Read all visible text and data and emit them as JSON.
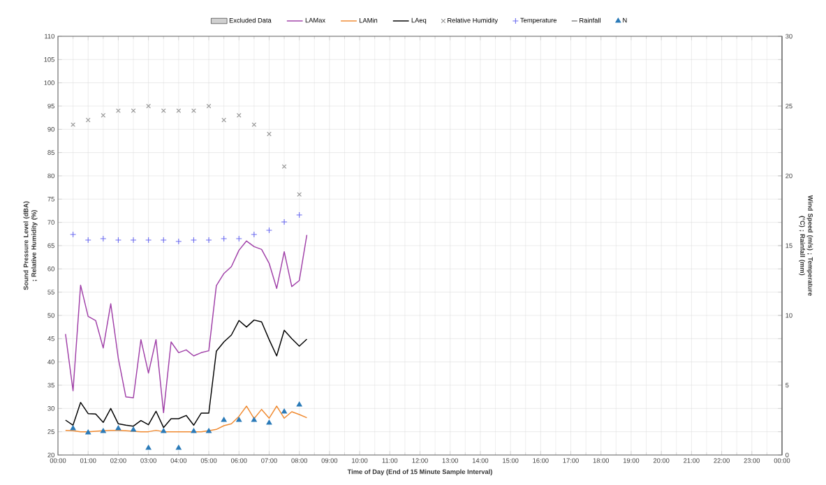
{
  "chart_data": {
    "type": "line",
    "xlabel": "Time of Day (End of 15 Minute Sample Interval)",
    "ylabel": "Sound Pressure Level (dBA) ; Relative Humidity (%)",
    "y2label": "Wind Speed (m/s) ; Temperature (°C) ; Rainfall (mm)",
    "xlim": [
      0,
      24
    ],
    "xticks": [
      {
        "value": 0,
        "label": "00:00"
      },
      {
        "value": 1,
        "label": "01:00"
      },
      {
        "value": 2,
        "label": "02:00"
      },
      {
        "value": 3,
        "label": "03:00"
      },
      {
        "value": 4,
        "label": "04:00"
      },
      {
        "value": 5,
        "label": "05:00"
      },
      {
        "value": 6,
        "label": "06:00"
      },
      {
        "value": 7,
        "label": "07:00"
      },
      {
        "value": 8,
        "label": "08:00"
      },
      {
        "value": 9,
        "label": "09:00"
      },
      {
        "value": 10,
        "label": "10:00"
      },
      {
        "value": 11,
        "label": "11:00"
      },
      {
        "value": 12,
        "label": "12:00"
      },
      {
        "value": 13,
        "label": "13:00"
      },
      {
        "value": 14,
        "label": "14:00"
      },
      {
        "value": 15,
        "label": "15:00"
      },
      {
        "value": 16,
        "label": "16:00"
      },
      {
        "value": 17,
        "label": "17:00"
      },
      {
        "value": 18,
        "label": "18:00"
      },
      {
        "value": 19,
        "label": "19:00"
      },
      {
        "value": 20,
        "label": "20:00"
      },
      {
        "value": 21,
        "label": "21:00"
      },
      {
        "value": 22,
        "label": "22:00"
      },
      {
        "value": 23,
        "label": "23:00"
      },
      {
        "value": 24,
        "label": "00:00"
      }
    ],
    "ylim": [
      20,
      110
    ],
    "yticks": [
      20,
      25,
      30,
      35,
      40,
      45,
      50,
      55,
      60,
      65,
      70,
      75,
      80,
      85,
      90,
      95,
      100,
      105,
      110
    ],
    "y2lim": [
      0,
      30
    ],
    "y2ticks": [
      0,
      5,
      10,
      15,
      20,
      25,
      30
    ],
    "grid": true,
    "legend": "top",
    "series": [
      {
        "name": "Excluded Data",
        "type": "area",
        "color": "#d0d0d0"
      },
      {
        "name": "LAMax",
        "color": "#a040a8",
        "x": [
          0.25,
          0.5,
          0.75,
          1.0,
          1.25,
          1.5,
          1.75,
          2.0,
          2.25,
          2.5,
          2.75,
          3.0,
          3.25,
          3.5,
          3.75,
          4.0,
          4.25,
          4.5,
          4.75,
          5.0,
          5.25,
          5.5,
          5.75,
          6.0,
          6.25,
          6.5,
          6.75,
          7.0,
          7.25,
          7.5,
          7.75,
          8.0,
          8.25
        ],
        "values": [
          46,
          33.8,
          56.5,
          49.8,
          48.9,
          43,
          52.5,
          40.8,
          32.5,
          32.3,
          44.8,
          37.6,
          44.8,
          29.1,
          44.3,
          42,
          42.6,
          41.3,
          42,
          42.4,
          56.4,
          59,
          60.5,
          64,
          66,
          64.8,
          64.2,
          61.2,
          55.8,
          63.7,
          56.2,
          57.5,
          67.3
        ]
      },
      {
        "name": "LAMin",
        "color": "#f08a30",
        "x": [
          0.25,
          0.5,
          0.75,
          1.0,
          1.25,
          1.5,
          1.75,
          2.0,
          2.25,
          2.5,
          2.75,
          3.0,
          3.25,
          3.5,
          3.75,
          4.0,
          4.25,
          4.5,
          4.75,
          5.0,
          5.25,
          5.5,
          5.75,
          6.0,
          6.25,
          6.5,
          6.75,
          7.0,
          7.25,
          7.5,
          7.75,
          8.0,
          8.25
        ],
        "values": [
          25.3,
          25.2,
          25,
          25,
          25.1,
          25.2,
          25.3,
          25.3,
          25.2,
          25.1,
          25,
          25,
          25.3,
          25,
          25,
          25,
          25,
          25,
          25,
          25.2,
          25.5,
          26.3,
          26.7,
          28.3,
          30.5,
          27.8,
          29.8,
          27.9,
          30.5,
          27.9,
          29.3,
          28.7,
          28
        ]
      },
      {
        "name": "LAeq",
        "color": "#000000",
        "x": [
          0.25,
          0.5,
          0.75,
          1.0,
          1.25,
          1.5,
          1.75,
          2.0,
          2.25,
          2.5,
          2.75,
          3.0,
          3.25,
          3.5,
          3.75,
          4.0,
          4.25,
          4.5,
          4.75,
          5.0,
          5.25,
          5.5,
          5.75,
          6.0,
          6.25,
          6.5,
          6.75,
          7.0,
          7.25,
          7.5,
          7.75,
          8.0,
          8.25
        ],
        "values": [
          27.5,
          26.4,
          31.3,
          28.9,
          28.8,
          27,
          30,
          26.7,
          26.4,
          26.2,
          27.4,
          26.5,
          29.4,
          25.9,
          27.8,
          27.8,
          28.5,
          26.4,
          29,
          29,
          42.3,
          44.3,
          45.8,
          48.9,
          47.5,
          49,
          48.6,
          44.8,
          41.3,
          46.8,
          45,
          43.4,
          44.9
        ]
      },
      {
        "name": "Relative Humidity",
        "type": "scatter",
        "color": "#909090",
        "marker": "cross",
        "x": [
          0.5,
          1.0,
          1.5,
          2.0,
          2.5,
          3.0,
          3.5,
          4.0,
          4.5,
          5.0,
          5.5,
          6.0,
          6.5,
          7.0,
          7.5,
          8.0
        ],
        "values": [
          91,
          92,
          93,
          94,
          94,
          95,
          94,
          94,
          94,
          95,
          92,
          93,
          91,
          89,
          82,
          76
        ]
      },
      {
        "name": "Temperature",
        "type": "scatter",
        "color": "#6a6af0",
        "marker": "plus",
        "axis": "y2",
        "x": [
          0.5,
          1.0,
          1.5,
          2.0,
          2.5,
          3.0,
          3.5,
          4.0,
          4.5,
          5.0,
          5.5,
          6.0,
          6.5,
          7.0,
          7.5,
          8.0
        ],
        "values": [
          15.8,
          15.4,
          15.5,
          15.4,
          15.4,
          15.4,
          15.4,
          15.3,
          15.4,
          15.4,
          15.5,
          15.5,
          15.8,
          16.1,
          16.7,
          17.2
        ]
      },
      {
        "name": "Rainfall",
        "type": "scatter",
        "color": "#555555",
        "marker": "dash",
        "axis": "y2"
      },
      {
        "name": "N",
        "type": "scatter",
        "color": "#2a7ab8",
        "marker": "triangle",
        "axis": "y2",
        "x": [
          0.5,
          1.0,
          1.5,
          2.0,
          2.5,
          3.0,
          3.5,
          4.0,
          4.5,
          5.0,
          5.5,
          6.0,
          6.5,
          7.0,
          7.5,
          8.0
        ],
        "values": [
          1.9,
          1.6,
          1.7,
          1.9,
          1.8,
          0.5,
          1.7,
          0.5,
          1.7,
          1.7,
          2.5,
          2.5,
          2.5,
          2.3,
          3.1,
          3.6
        ]
      }
    ]
  }
}
